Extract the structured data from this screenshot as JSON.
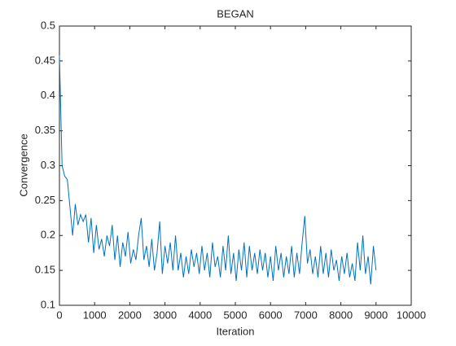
{
  "chart_data": {
    "type": "line",
    "title": "BEGAN",
    "x_label": "Iteration",
    "y_label": "Convergence",
    "x": [
      0,
      75,
      150,
      225,
      300,
      375,
      450,
      525,
      600,
      675,
      750,
      825,
      900,
      975,
      1050,
      1125,
      1200,
      1275,
      1350,
      1425,
      1500,
      1575,
      1650,
      1725,
      1800,
      1875,
      1950,
      2025,
      2100,
      2175,
      2250,
      2325,
      2400,
      2475,
      2550,
      2625,
      2700,
      2775,
      2850,
      2925,
      3000,
      3075,
      3150,
      3225,
      3300,
      3375,
      3450,
      3525,
      3600,
      3675,
      3750,
      3825,
      3900,
      3975,
      4050,
      4125,
      4200,
      4275,
      4350,
      4425,
      4500,
      4575,
      4650,
      4725,
      4800,
      4875,
      4950,
      5025,
      5100,
      5175,
      5250,
      5325,
      5400,
      5475,
      5550,
      5625,
      5700,
      5775,
      5850,
      5925,
      6000,
      6075,
      6150,
      6225,
      6300,
      6375,
      6450,
      6525,
      6600,
      6675,
      6750,
      6825,
      6900,
      6975,
      7050,
      7125,
      7200,
      7275,
      7350,
      7425,
      7500,
      7575,
      7650,
      7725,
      7800,
      7875,
      7950,
      8025,
      8100,
      8175,
      8250,
      8325,
      8400,
      8475,
      8550,
      8625,
      8700,
      8775,
      8850,
      8925,
      9000
    ],
    "series": [
      {
        "name": "Convergence",
        "color": "#0072bd",
        "values": [
          0.458,
          0.3,
          0.285,
          0.28,
          0.24,
          0.2,
          0.245,
          0.215,
          0.23,
          0.22,
          0.23,
          0.19,
          0.225,
          0.175,
          0.215,
          0.18,
          0.195,
          0.17,
          0.2,
          0.185,
          0.215,
          0.165,
          0.2,
          0.155,
          0.19,
          0.17,
          0.205,
          0.16,
          0.18,
          0.165,
          0.2,
          0.225,
          0.165,
          0.185,
          0.155,
          0.195,
          0.15,
          0.175,
          0.22,
          0.145,
          0.185,
          0.16,
          0.19,
          0.15,
          0.2,
          0.15,
          0.175,
          0.14,
          0.17,
          0.145,
          0.18,
          0.155,
          0.175,
          0.145,
          0.185,
          0.15,
          0.175,
          0.14,
          0.19,
          0.155,
          0.17,
          0.14,
          0.185,
          0.15,
          0.2,
          0.145,
          0.175,
          0.135,
          0.18,
          0.15,
          0.19,
          0.14,
          0.185,
          0.15,
          0.175,
          0.145,
          0.18,
          0.15,
          0.175,
          0.14,
          0.17,
          0.135,
          0.185,
          0.15,
          0.175,
          0.14,
          0.17,
          0.145,
          0.185,
          0.14,
          0.175,
          0.145,
          0.19,
          0.228,
          0.16,
          0.18,
          0.145,
          0.17,
          0.14,
          0.185,
          0.145,
          0.175,
          0.14,
          0.18,
          0.15,
          0.165,
          0.135,
          0.17,
          0.145,
          0.175,
          0.14,
          0.16,
          0.135,
          0.19,
          0.15,
          0.2,
          0.145,
          0.17,
          0.13,
          0.185,
          0.15
        ]
      }
    ],
    "xlim": [
      0,
      10000
    ],
    "xticks": [
      0,
      1000,
      2000,
      3000,
      4000,
      5000,
      6000,
      7000,
      8000,
      9000,
      10000
    ],
    "ylim": [
      0.1,
      0.5
    ],
    "yticks": [
      0.1,
      0.15,
      0.2,
      0.25,
      0.3,
      0.35,
      0.4,
      0.45,
      0.5
    ]
  }
}
